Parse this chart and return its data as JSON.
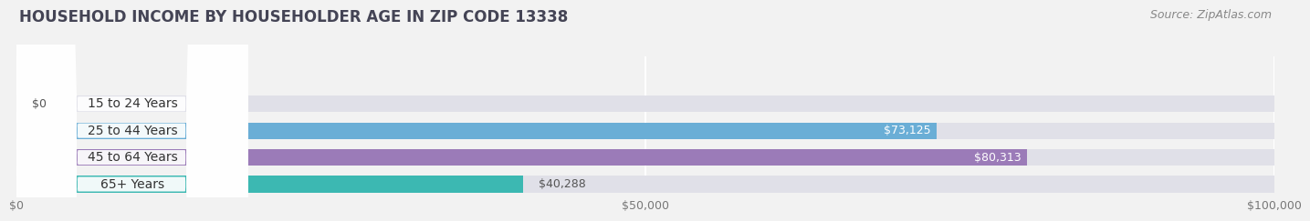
{
  "title": "HOUSEHOLD INCOME BY HOUSEHOLDER AGE IN ZIP CODE 13338",
  "source": "Source: ZipAtlas.com",
  "categories": [
    "15 to 24 Years",
    "25 to 44 Years",
    "45 to 64 Years",
    "65+ Years"
  ],
  "values": [
    0,
    73125,
    80313,
    40288
  ],
  "bar_colors": [
    "#f0919a",
    "#6aaed6",
    "#9b7bb8",
    "#3cb8b2"
  ],
  "label_texts": [
    "$0",
    "$73,125",
    "$80,313",
    "$40,288"
  ],
  "label_in_bar": [
    false,
    true,
    true,
    false
  ],
  "xlim": [
    0,
    100000
  ],
  "xtick_values": [
    0,
    50000,
    100000
  ],
  "xtick_labels": [
    "$0",
    "$50,000",
    "$100,000"
  ],
  "bg_color": "#f2f2f2",
  "bar_bg_color": "#e0e0e8",
  "title_fontsize": 12,
  "source_fontsize": 9,
  "label_fontsize": 9,
  "cat_fontsize": 10,
  "xtick_fontsize": 9
}
